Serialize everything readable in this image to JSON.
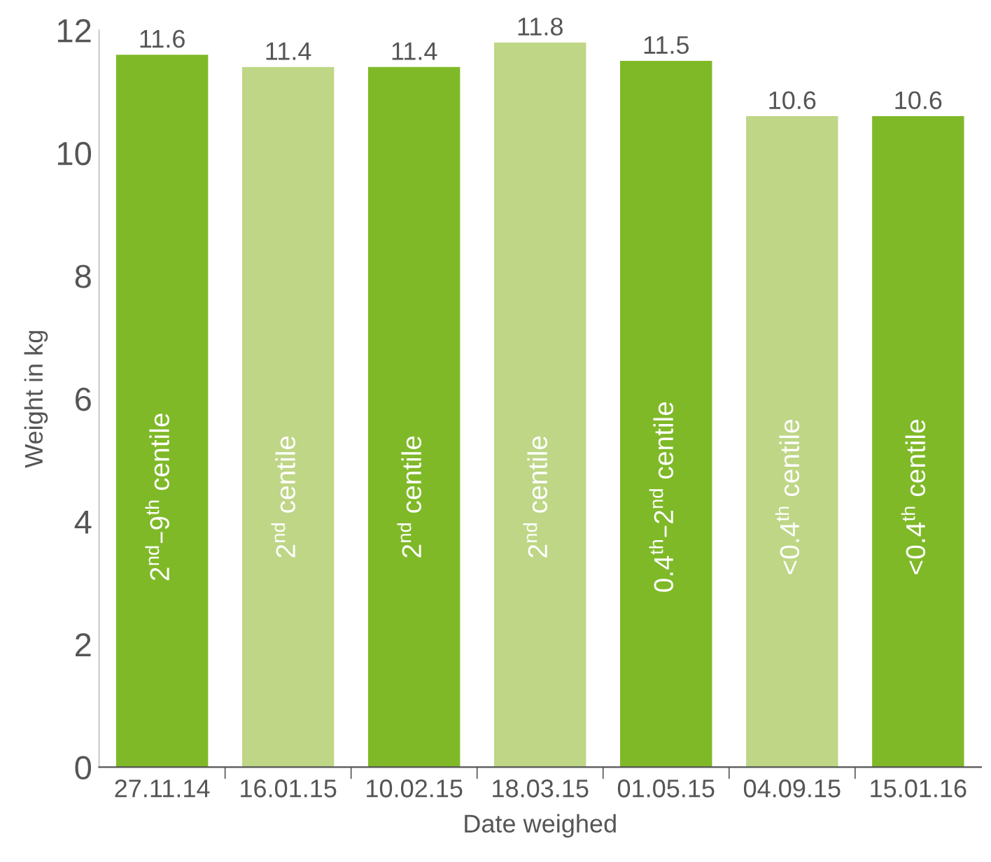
{
  "chart_data": {
    "type": "bar",
    "xlabel": "Date weighed",
    "ylabel": "Weight in kg",
    "categories": [
      "27.11.14",
      "16.01.15",
      "10.02.15",
      "18.03.15",
      "01.05.15",
      "04.09.15",
      "15.01.16"
    ],
    "values": [
      11.6,
      11.4,
      11.4,
      11.8,
      11.5,
      10.6,
      10.6
    ],
    "colors": [
      "#7fb928",
      "#bed686",
      "#7fb928",
      "#bed686",
      "#7fb928",
      "#bed686",
      "#7fb928"
    ],
    "ylim": [
      0,
      12
    ],
    "yticks": [
      0,
      2,
      4,
      6,
      8,
      10,
      12
    ],
    "grid": false,
    "data_labels": true,
    "annotations": [
      "2$^{nd}$–9$^{th}$ centile",
      "2$^{nd}$ centile",
      "2$^{nd}$ centile",
      "2$^{nd}$ centile",
      "0.4$^{th}$–2$^{nd}$ centile",
      "<0.4$^{th}$ centile",
      "<0.4$^{th}$ centile"
    ]
  }
}
